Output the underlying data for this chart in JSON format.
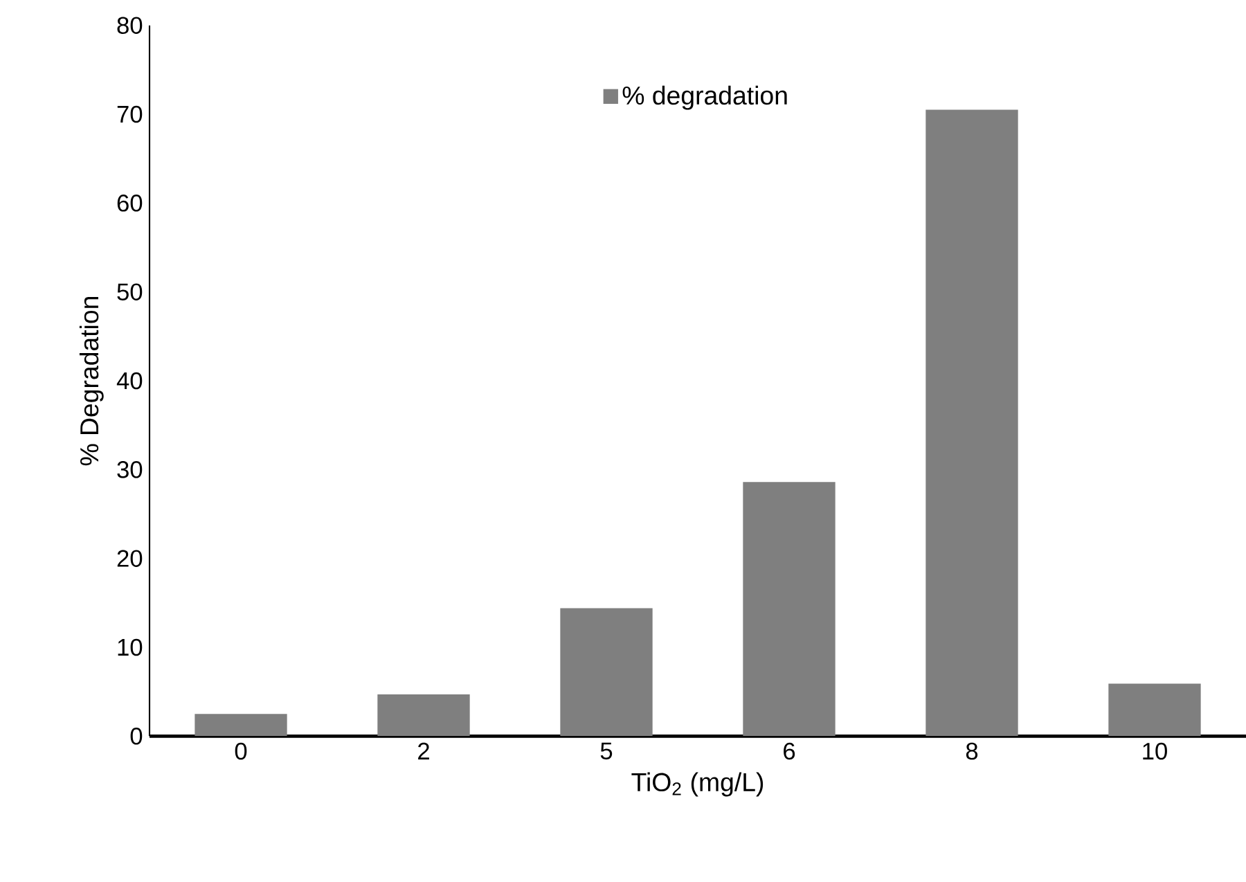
{
  "chart_data": {
    "type": "bar",
    "xlabel": "TiO$_{2}$ (mg/L)",
    "ylabel": "% Degradation",
    "categories": [
      "0",
      "2",
      "5",
      "6",
      "8",
      "10"
    ],
    "series": [
      {
        "name": "% degradation",
        "color": "#7f7f7f",
        "values": [
          2.5,
          4.7,
          14.4,
          28.6,
          70.5,
          5.9
        ]
      }
    ],
    "ylim": [
      0,
      80
    ],
    "yticks": [
      0,
      10,
      20,
      30,
      40,
      50,
      60,
      70,
      80
    ],
    "grid": false,
    "legend": "top"
  }
}
